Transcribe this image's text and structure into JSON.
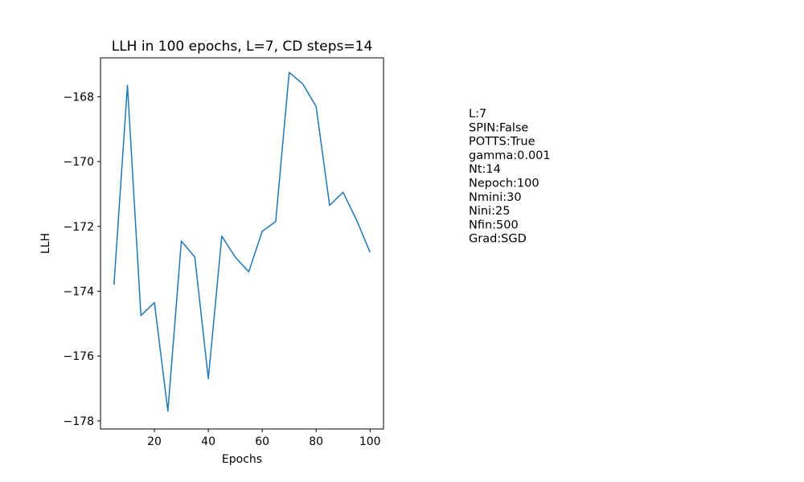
{
  "chart_data": {
    "type": "line",
    "title": "LLH in 100 epochs, L=7, CD steps=14",
    "xlabel": "Epochs",
    "ylabel": "LLH",
    "xlim": [
      0,
      105
    ],
    "ylim": [
      -178.25,
      -166.8
    ],
    "x_ticks": [
      20,
      40,
      60,
      80,
      100
    ],
    "y_ticks": [
      -178,
      -176,
      -174,
      -172,
      -170,
      -168
    ],
    "grid": false,
    "series": [
      {
        "color": "#1f77b4",
        "x": [
          5,
          10,
          15,
          20,
          25,
          30,
          35,
          40,
          45,
          50,
          55,
          60,
          65,
          70,
          75,
          80,
          85,
          90,
          95,
          100
        ],
        "y": [
          -173.8,
          -167.65,
          -174.75,
          -174.35,
          -177.7,
          -172.45,
          -172.95,
          -176.7,
          -172.3,
          -172.95,
          -173.4,
          -172.15,
          -171.85,
          -167.25,
          -167.6,
          -168.3,
          -171.35,
          -170.95,
          -171.8,
          -172.8
        ]
      }
    ],
    "annotation_lines": [
      "L:7",
      "SPIN:False",
      "POTTS:True",
      "gamma:0.001",
      "Nt:14",
      "Nepoch:100",
      "Nmini:30",
      "Nini:25",
      "Nfin:500",
      "Grad:SGD"
    ]
  }
}
